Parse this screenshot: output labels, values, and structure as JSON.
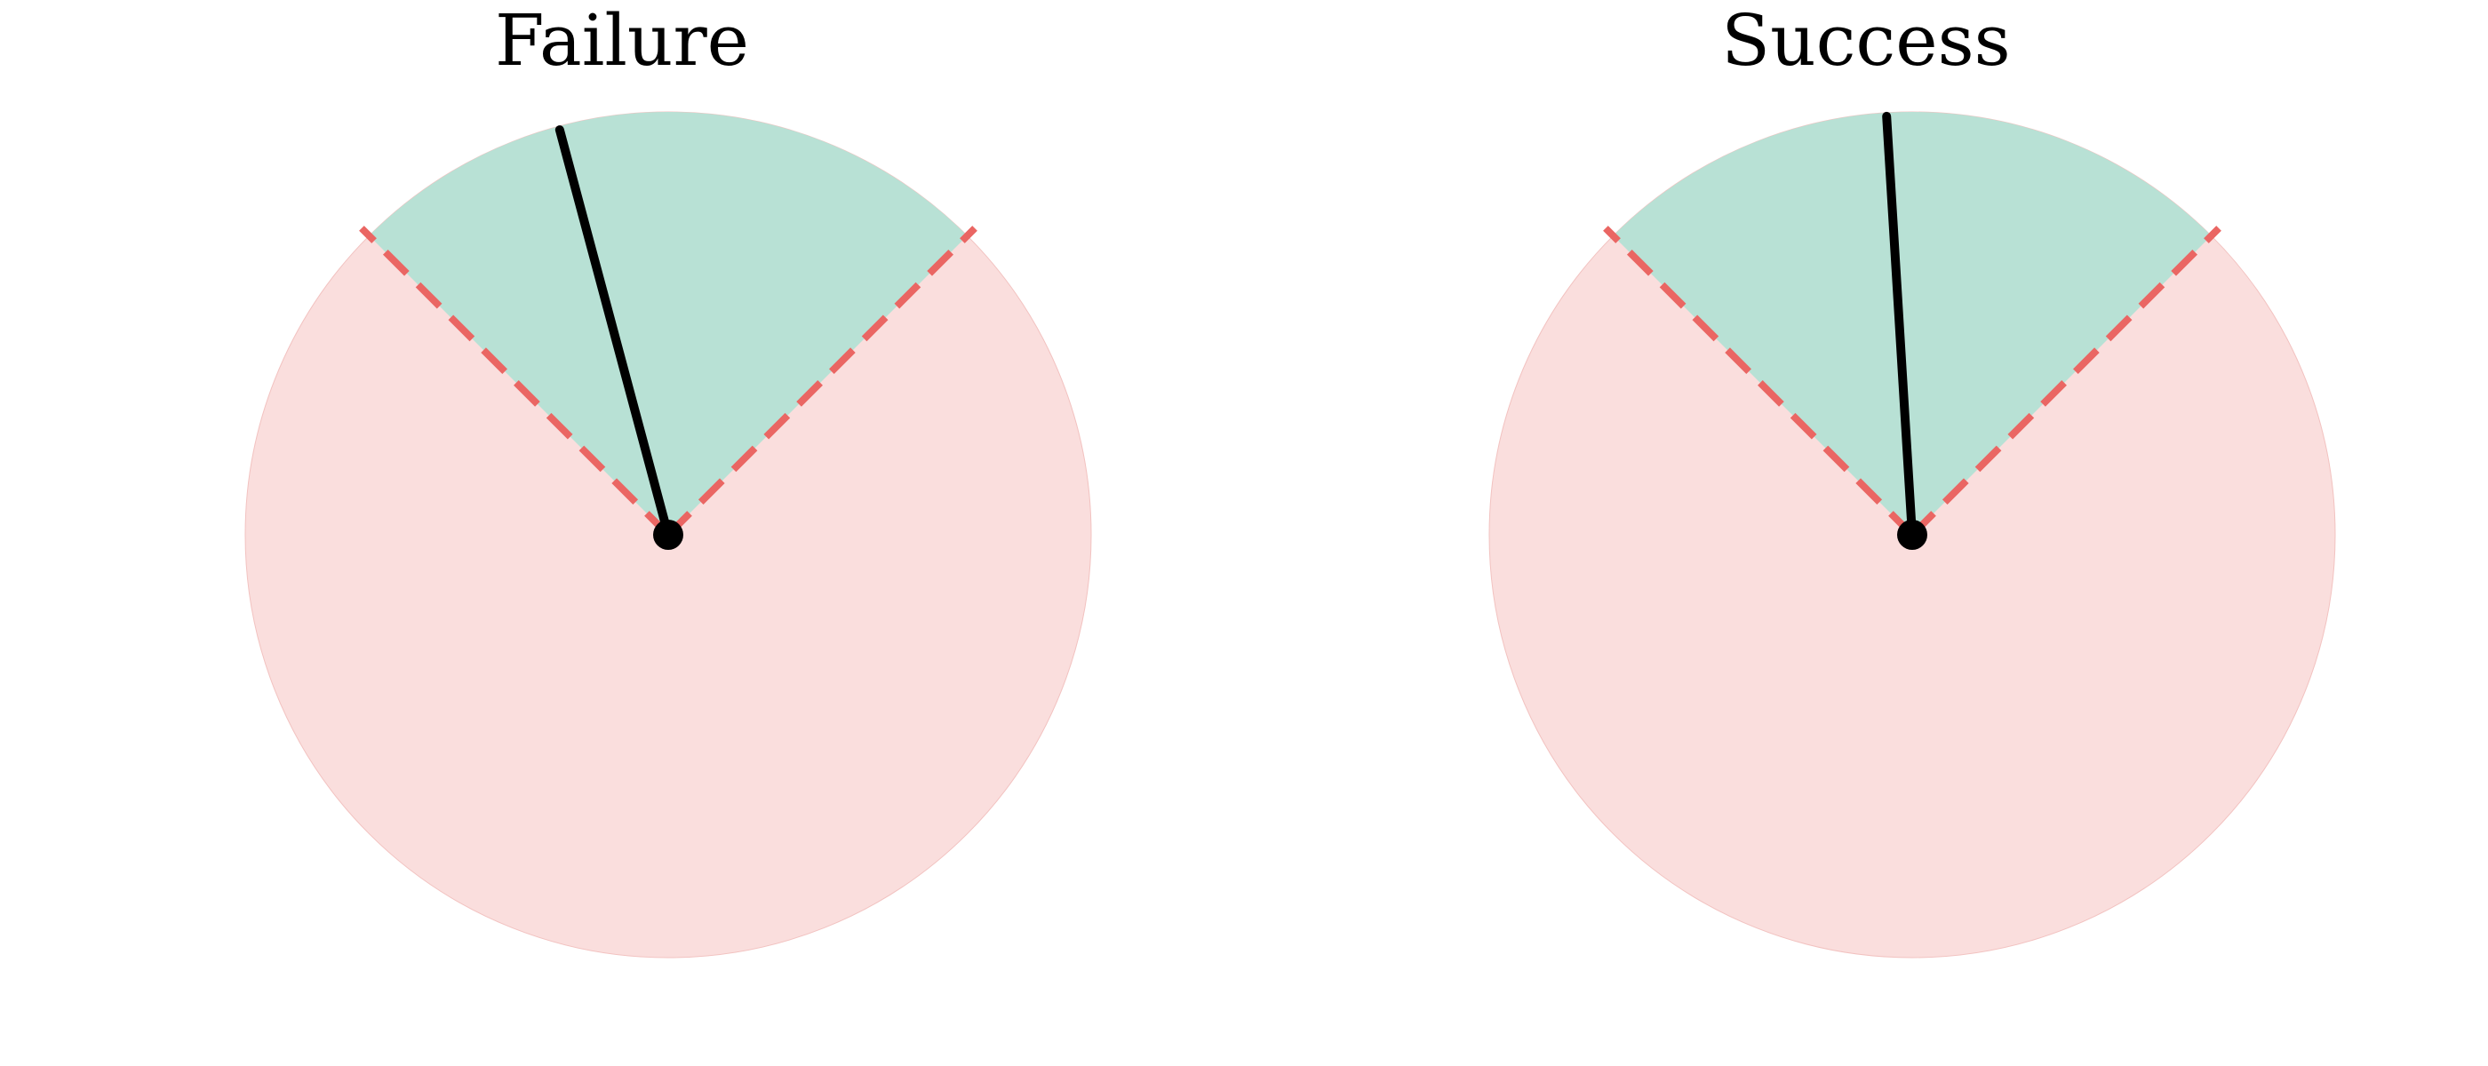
{
  "colors": {
    "safe_zone": "#b8e1d5",
    "unsafe_zone": "#fadedd",
    "boundary": "#ea6663",
    "pointer": "#000000"
  },
  "panels": [
    {
      "title": "Failure",
      "safe_zone_half_angle_deg": 45,
      "pointer_angle_deg": -15
    },
    {
      "title": "Success",
      "safe_zone_half_angle_deg": 45,
      "pointer_angle_deg": -3.5
    }
  ]
}
